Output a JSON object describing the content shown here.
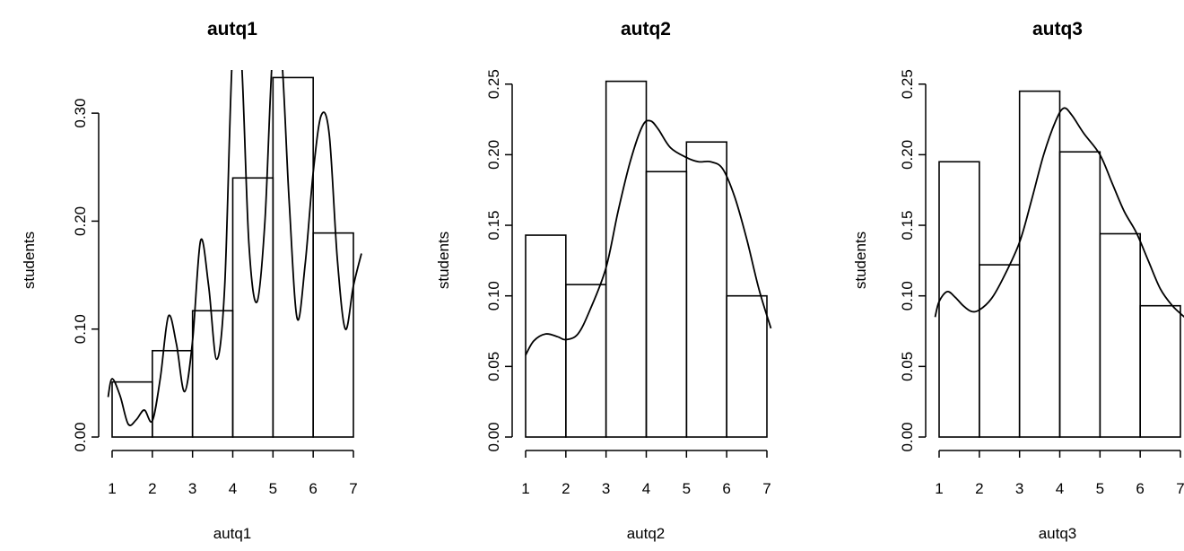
{
  "chart_data": [
    {
      "type": "bar",
      "title": "autq1",
      "xlabel": "autq1",
      "ylabel": "students",
      "bins": [
        [
          1,
          2
        ],
        [
          2,
          3
        ],
        [
          3,
          4
        ],
        [
          4,
          5
        ],
        [
          5,
          6
        ],
        [
          6,
          7
        ]
      ],
      "values": [
        0.051,
        0.08,
        0.117,
        0.24,
        0.333,
        0.189
      ],
      "xticks": [
        "1",
        "2",
        "3",
        "4",
        "5",
        "6",
        "7"
      ],
      "yticks": [
        "0.00",
        "0.10",
        "0.20",
        "0.30"
      ],
      "ytick_values": [
        0,
        0.1,
        0.2,
        0.3
      ],
      "xlim": [
        1,
        7
      ],
      "ylim": [
        0,
        0.34
      ],
      "density_curve": {
        "x": [
          0.9,
          1.0,
          1.2,
          1.4,
          1.6,
          1.8,
          2.0,
          2.2,
          2.4,
          2.6,
          2.8,
          3.0,
          3.2,
          3.4,
          3.6,
          3.8,
          4.0,
          4.2,
          4.4,
          4.6,
          4.8,
          5.0,
          5.2,
          5.4,
          5.6,
          5.8,
          6.0,
          6.2,
          6.4,
          6.6,
          6.8,
          7.0,
          7.2
        ],
        "y": [
          0.037,
          0.054,
          0.038,
          0.012,
          0.016,
          0.025,
          0.015,
          0.055,
          0.112,
          0.086,
          0.042,
          0.089,
          0.182,
          0.14,
          0.072,
          0.14,
          0.36,
          0.36,
          0.18,
          0.125,
          0.2,
          0.36,
          0.36,
          0.22,
          0.11,
          0.16,
          0.245,
          0.298,
          0.28,
          0.165,
          0.1,
          0.14,
          0.17
        ]
      },
      "grid": false,
      "legend": "none"
    },
    {
      "type": "bar",
      "title": "autq2",
      "xlabel": "autq2",
      "ylabel": "students",
      "bins": [
        [
          1,
          2
        ],
        [
          2,
          3
        ],
        [
          3,
          4
        ],
        [
          4,
          5
        ],
        [
          5,
          6
        ],
        [
          6,
          7
        ]
      ],
      "values": [
        0.143,
        0.108,
        0.252,
        0.188,
        0.209,
        0.1
      ],
      "xticks": [
        "1",
        "2",
        "3",
        "4",
        "5",
        "6",
        "7"
      ],
      "yticks": [
        "0.00",
        "0.05",
        "0.10",
        "0.15",
        "0.20",
        "0.25"
      ],
      "ytick_values": [
        0,
        0.05,
        0.1,
        0.15,
        0.2,
        0.25
      ],
      "xlim": [
        1,
        7
      ],
      "ylim": [
        0,
        0.26
      ],
      "density_curve": {
        "x": [
          1.0,
          1.2,
          1.5,
          1.8,
          2.0,
          2.3,
          2.6,
          3.0,
          3.3,
          3.6,
          3.9,
          4.1,
          4.3,
          4.6,
          5.0,
          5.3,
          5.6,
          5.9,
          6.2,
          6.5,
          6.8,
          7.1
        ],
        "y": [
          0.058,
          0.068,
          0.073,
          0.071,
          0.069,
          0.073,
          0.09,
          0.12,
          0.16,
          0.195,
          0.22,
          0.224,
          0.218,
          0.205,
          0.198,
          0.195,
          0.195,
          0.19,
          0.17,
          0.14,
          0.105,
          0.077
        ]
      },
      "grid": false,
      "legend": "none"
    },
    {
      "type": "bar",
      "title": "autq3",
      "xlabel": "autq3",
      "ylabel": "students",
      "bins": [
        [
          1,
          2
        ],
        [
          2,
          3
        ],
        [
          3,
          4
        ],
        [
          4,
          5
        ],
        [
          5,
          6
        ],
        [
          6,
          7
        ]
      ],
      "values": [
        0.195,
        0.122,
        0.245,
        0.202,
        0.144,
        0.093
      ],
      "xticks": [
        "1",
        "2",
        "3",
        "4",
        "5",
        "6",
        "7"
      ],
      "yticks": [
        "0.00",
        "0.05",
        "0.10",
        "0.15",
        "0.20",
        "0.25"
      ],
      "ytick_values": [
        0,
        0.05,
        0.1,
        0.15,
        0.2,
        0.25
      ],
      "xlim": [
        1,
        7
      ],
      "ylim": [
        0,
        0.26
      ],
      "density_curve": {
        "x": [
          0.9,
          1.0,
          1.2,
          1.4,
          1.6,
          1.8,
          2.0,
          2.3,
          2.6,
          3.0,
          3.3,
          3.6,
          3.9,
          4.1,
          4.3,
          4.6,
          5.0,
          5.3,
          5.6,
          5.9,
          6.2,
          6.5,
          6.8,
          7.1
        ],
        "y": [
          0.085,
          0.096,
          0.103,
          0.099,
          0.093,
          0.089,
          0.09,
          0.098,
          0.113,
          0.138,
          0.168,
          0.2,
          0.224,
          0.233,
          0.228,
          0.215,
          0.2,
          0.18,
          0.16,
          0.145,
          0.125,
          0.105,
          0.093,
          0.085
        ]
      },
      "grid": false,
      "legend": "none"
    }
  ]
}
